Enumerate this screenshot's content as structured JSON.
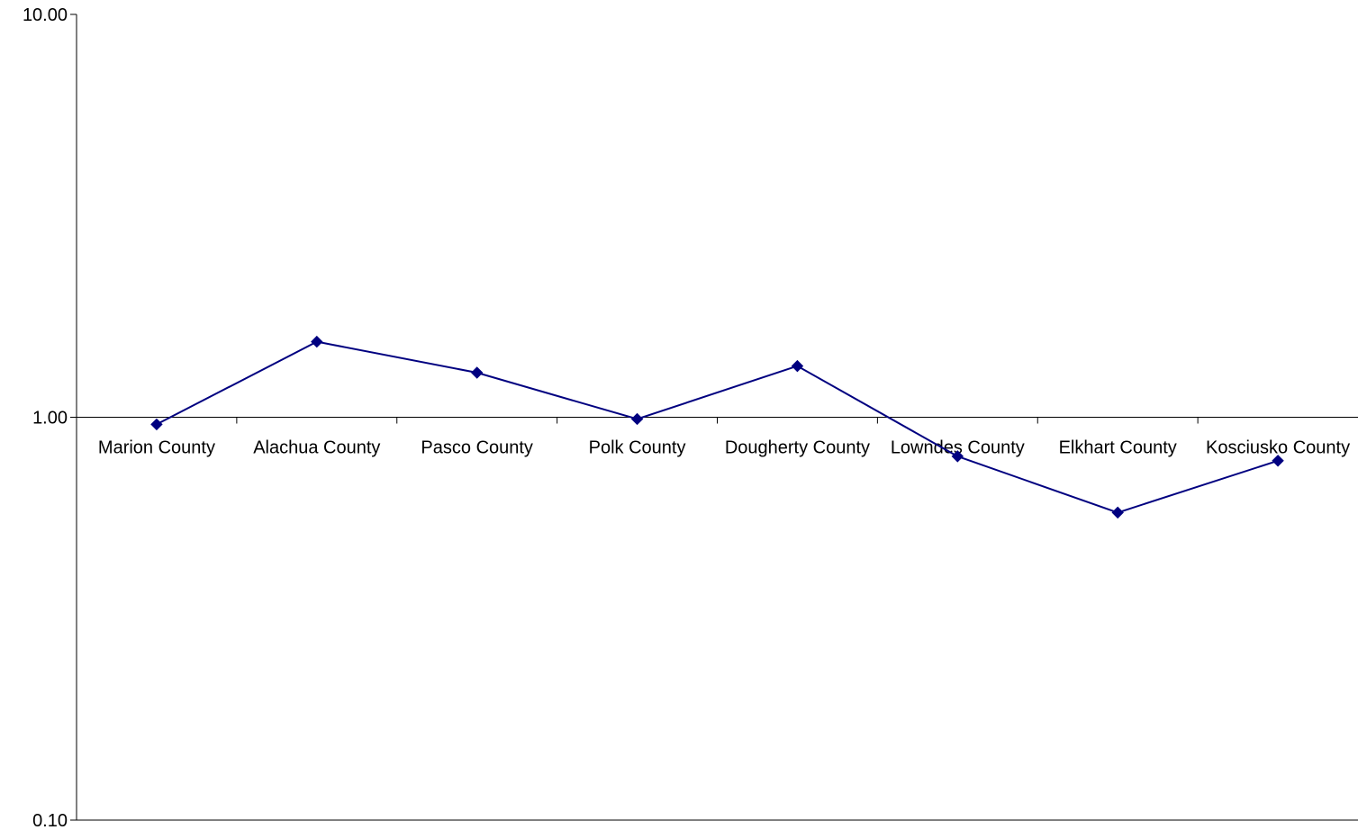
{
  "chart_data": {
    "type": "line",
    "title": "",
    "xlabel": "",
    "ylabel": "",
    "y_scale": "log",
    "ylim": [
      0.1,
      10
    ],
    "y_ticks": [
      "10.00",
      "1.00",
      "0.10"
    ],
    "y_tick_values": [
      10,
      1,
      0.1
    ],
    "grid": false,
    "legend": "none",
    "categories": [
      "Marion County",
      "Alachua County",
      "Pasco County",
      "Polk County",
      "Dougherty County",
      "Lowndes County",
      "Elkhart County",
      "Kosciusko County"
    ],
    "series": [
      {
        "values": [
          0.96,
          1.54,
          1.29,
          0.99,
          1.34,
          0.8,
          0.58,
          0.78
        ]
      }
    ],
    "series_color": "#000080",
    "marker": "diamond"
  }
}
